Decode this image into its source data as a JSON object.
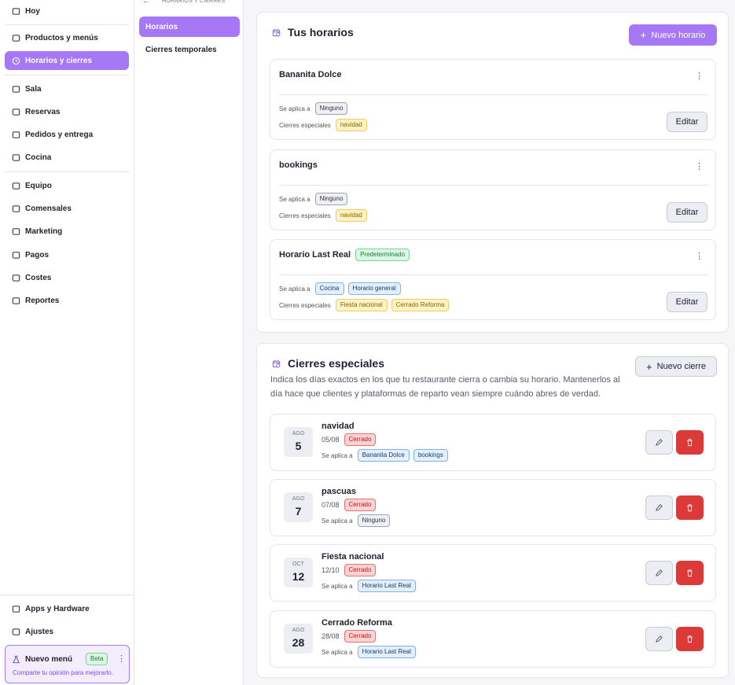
{
  "sidebar": {
    "items": [
      "Hoy",
      "Productos y menús",
      "Horarios y cierres",
      "Sala",
      "Reservas",
      "Pedidos y entrega",
      "Cocina",
      "Equipo",
      "Comensales",
      "Marketing",
      "Pagos",
      "Costes",
      "Reportes"
    ],
    "bottom_items": [
      "Apps y Hardware",
      "Ajustes"
    ],
    "new_menu": {
      "title": "Nuevo menú",
      "badge": "Beta",
      "text": "Comparte tu opinión para mejorarlo."
    }
  },
  "submenu": {
    "header": "HORARIOS Y CIERRES",
    "items": [
      "Horarios",
      "Cierres temporales"
    ]
  },
  "schedules": {
    "title": "Tus horarios",
    "button": "Nuevo horario",
    "cards": [
      {
        "name": "Bananita Dolce",
        "applies_label": "Se aplica a",
        "applies": [
          {
            "label": "Ninguno",
            "color": "gray"
          }
        ],
        "closures_label": "Cierres especiales",
        "closures": [
          {
            "label": "navidad",
            "color": "yellow"
          }
        ],
        "edit": "Editar"
      },
      {
        "name": "bookings",
        "applies_label": "Se aplica a",
        "applies": [
          {
            "label": "Ninguno",
            "color": "gray"
          }
        ],
        "closures_label": "Cierres especiales",
        "closures": [
          {
            "label": "navidad",
            "color": "yellow"
          }
        ],
        "edit": "Editar"
      },
      {
        "name": "Horario Last Real",
        "badge": "Predeterminado",
        "applies_label": "Se aplica a",
        "applies": [
          {
            "label": "Cocina",
            "color": "blue"
          },
          {
            "label": "Horario general",
            "color": "blue"
          }
        ],
        "closures_label": "Cierres especiales",
        "closures": [
          {
            "label": "Fiesta nacional",
            "color": "yellow"
          },
          {
            "label": "Cerrado Reforma",
            "color": "yellow"
          }
        ],
        "edit": "Editar"
      }
    ]
  },
  "closures": {
    "title": "Cierres especiales",
    "description": "Indica los días exactos en los que tu restaurante cierra o cambia su horario. Mantenerlos al día hace que clientes y plataformas de reparto vean siempre cuándo abres de verdad.",
    "button": "Nuevo cierre",
    "items": [
      {
        "month": "AGO",
        "day": "5",
        "name": "navidad",
        "date": "05/08",
        "status": "Cerrado",
        "applies_label": "Se aplica a",
        "applies": [
          {
            "label": "Bananita Dolce",
            "color": "blue"
          },
          {
            "label": "bookings",
            "color": "blue"
          }
        ]
      },
      {
        "month": "AGO",
        "day": "7",
        "name": "pascuas",
        "date": "07/08",
        "status": "Cerrado",
        "applies_label": "Se aplica a",
        "applies": [
          {
            "label": "Ninguno",
            "color": "gray"
          }
        ]
      },
      {
        "month": "OCT",
        "day": "12",
        "name": "Fiesta nacional",
        "date": "12/10",
        "status": "Cerrado",
        "applies_label": "Se aplica a",
        "applies": [
          {
            "label": "Horario Last Real",
            "color": "blue"
          }
        ]
      },
      {
        "month": "AGO",
        "day": "28",
        "name": "Cerrado Reforma",
        "date": "28/08",
        "status": "Cerrado",
        "applies_label": "Se aplica a",
        "applies": [
          {
            "label": "Horario Last Real",
            "color": "blue"
          }
        ]
      }
    ]
  }
}
